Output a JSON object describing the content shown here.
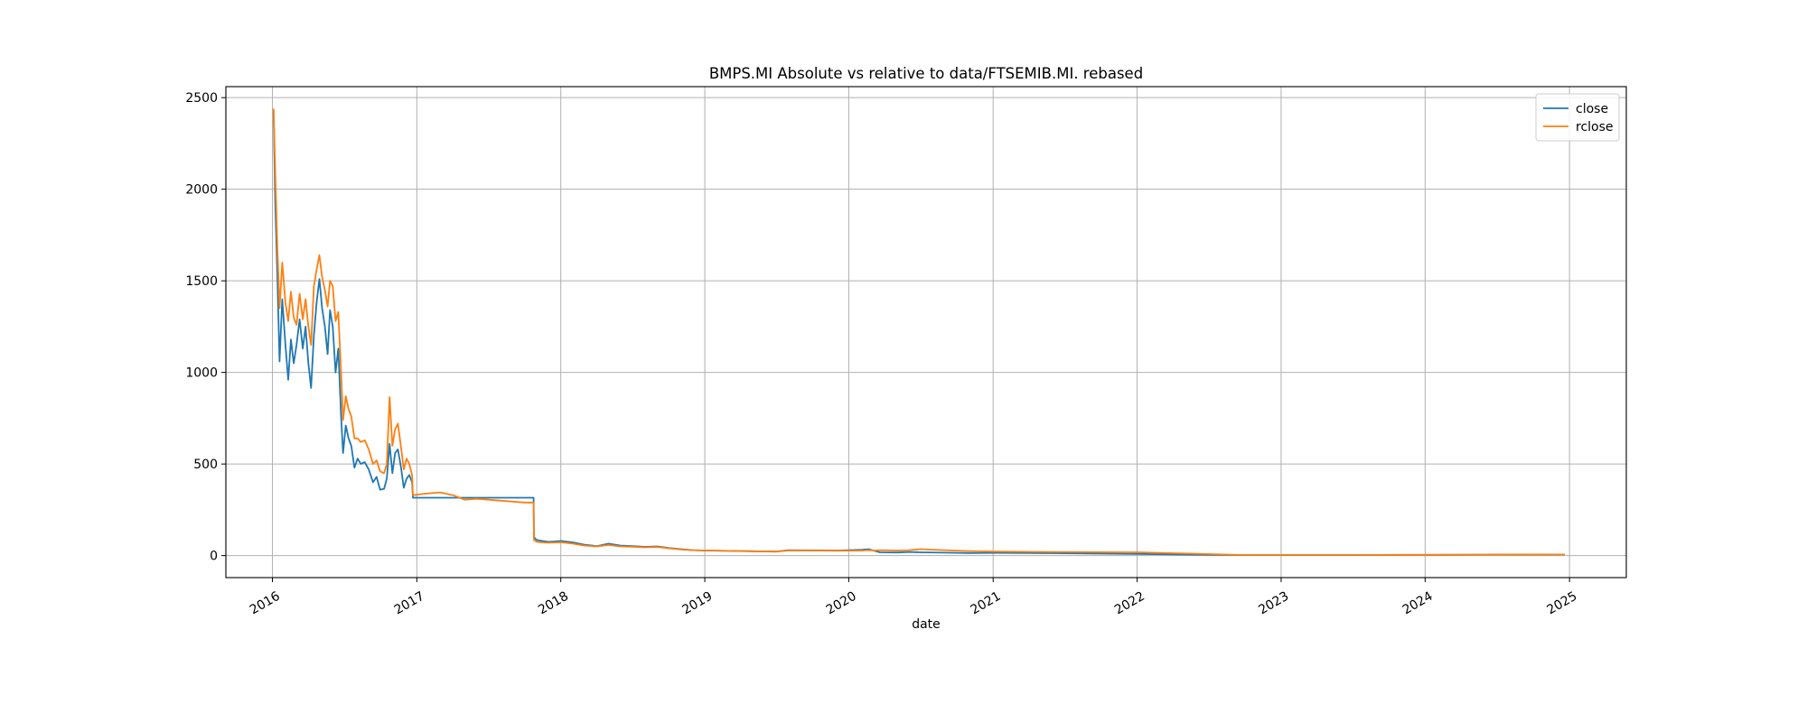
{
  "chart_data": {
    "type": "line",
    "title": "BMPS.MI Absolute vs relative to data/FTSEMIB.MI. rebased",
    "xlabel": "date",
    "ylabel": "",
    "x_type": "date",
    "xlim": [
      "2015-09-05",
      "2025-05-25"
    ],
    "ylim": [
      -120,
      2560
    ],
    "x_ticks": [
      {
        "date": "2016-01-01",
        "label": "2016"
      },
      {
        "date": "2017-01-01",
        "label": "2017"
      },
      {
        "date": "2018-01-01",
        "label": "2018"
      },
      {
        "date": "2019-01-01",
        "label": "2019"
      },
      {
        "date": "2020-01-01",
        "label": "2020"
      },
      {
        "date": "2021-01-01",
        "label": "2021"
      },
      {
        "date": "2022-01-01",
        "label": "2022"
      },
      {
        "date": "2023-01-01",
        "label": "2023"
      },
      {
        "date": "2024-01-01",
        "label": "2024"
      },
      {
        "date": "2025-01-01",
        "label": "2025"
      }
    ],
    "y_ticks": [
      0,
      500,
      1000,
      1500,
      2000,
      2500
    ],
    "grid": true,
    "legend_position": "top-right",
    "series": [
      {
        "name": "close",
        "color": "#1f77b4",
        "points": [
          [
            "2016-01-04",
            2430
          ],
          [
            "2016-01-08",
            1930
          ],
          [
            "2016-01-13",
            1560
          ],
          [
            "2016-01-19",
            1060
          ],
          [
            "2016-01-26",
            1400
          ],
          [
            "2016-02-03",
            1150
          ],
          [
            "2016-02-10",
            960
          ],
          [
            "2016-02-17",
            1180
          ],
          [
            "2016-02-24",
            1050
          ],
          [
            "2016-03-02",
            1150
          ],
          [
            "2016-03-10",
            1290
          ],
          [
            "2016-03-18",
            1130
          ],
          [
            "2016-03-25",
            1250
          ],
          [
            "2016-04-01",
            1050
          ],
          [
            "2016-04-08",
            915
          ],
          [
            "2016-04-15",
            1200
          ],
          [
            "2016-04-22",
            1380
          ],
          [
            "2016-04-29",
            1510
          ],
          [
            "2016-05-06",
            1350
          ],
          [
            "2016-05-13",
            1250
          ],
          [
            "2016-05-20",
            1100
          ],
          [
            "2016-05-26",
            1340
          ],
          [
            "2016-06-02",
            1250
          ],
          [
            "2016-06-09",
            1000
          ],
          [
            "2016-06-16",
            1130
          ],
          [
            "2016-06-23",
            760
          ],
          [
            "2016-06-28",
            560
          ],
          [
            "2016-07-05",
            710
          ],
          [
            "2016-07-12",
            640
          ],
          [
            "2016-07-19",
            600
          ],
          [
            "2016-07-27",
            480
          ],
          [
            "2016-08-04",
            530
          ],
          [
            "2016-08-12",
            500
          ],
          [
            "2016-08-22",
            510
          ],
          [
            "2016-09-01",
            470
          ],
          [
            "2016-09-12",
            400
          ],
          [
            "2016-09-21",
            430
          ],
          [
            "2016-09-30",
            360
          ],
          [
            "2016-10-10",
            365
          ],
          [
            "2016-10-17",
            420
          ],
          [
            "2016-10-24",
            610
          ],
          [
            "2016-10-31",
            450
          ],
          [
            "2016-11-07",
            560
          ],
          [
            "2016-11-14",
            580
          ],
          [
            "2016-11-22",
            480
          ],
          [
            "2016-11-29",
            370
          ],
          [
            "2016-12-06",
            420
          ],
          [
            "2016-12-13",
            440
          ],
          [
            "2016-12-20",
            400
          ],
          [
            "2016-12-22",
            316
          ],
          [
            "2017-10-24",
            316
          ],
          [
            "2017-10-25",
            100
          ],
          [
            "2017-11-01",
            85
          ],
          [
            "2017-11-15",
            80
          ],
          [
            "2017-12-01",
            75
          ],
          [
            "2018-01-02",
            80
          ],
          [
            "2018-02-01",
            72
          ],
          [
            "2018-03-01",
            60
          ],
          [
            "2018-04-03",
            52
          ],
          [
            "2018-05-02",
            65
          ],
          [
            "2018-06-01",
            55
          ],
          [
            "2018-07-02",
            52
          ],
          [
            "2018-08-01",
            48
          ],
          [
            "2018-09-03",
            50
          ],
          [
            "2018-10-01",
            42
          ],
          [
            "2018-11-02",
            35
          ],
          [
            "2018-12-03",
            30
          ],
          [
            "2019-01-03",
            28
          ],
          [
            "2019-03-01",
            26
          ],
          [
            "2019-05-02",
            24
          ],
          [
            "2019-07-01",
            22
          ],
          [
            "2019-08-01",
            30
          ],
          [
            "2019-10-01",
            29
          ],
          [
            "2019-12-02",
            28
          ],
          [
            "2020-02-03",
            32
          ],
          [
            "2020-02-20",
            35
          ],
          [
            "2020-03-09",
            25
          ],
          [
            "2020-03-20",
            18
          ],
          [
            "2020-05-04",
            17
          ],
          [
            "2020-06-02",
            20
          ],
          [
            "2020-07-01",
            18
          ],
          [
            "2020-09-01",
            16
          ],
          [
            "2020-11-02",
            14
          ],
          [
            "2021-01-04",
            15
          ],
          [
            "2021-06-01",
            13
          ],
          [
            "2022-01-03",
            9
          ],
          [
            "2022-06-01",
            5
          ],
          [
            "2022-10-03",
            3
          ],
          [
            "2023-01-03",
            3
          ],
          [
            "2023-06-01",
            3
          ],
          [
            "2024-01-02",
            4
          ],
          [
            "2024-06-03",
            5
          ],
          [
            "2024-12-20",
            6
          ]
        ]
      },
      {
        "name": "rclose",
        "color": "#ff7f0e",
        "points": [
          [
            "2016-01-04",
            2440
          ],
          [
            "2016-01-08",
            2100
          ],
          [
            "2016-01-13",
            1710
          ],
          [
            "2016-01-19",
            1350
          ],
          [
            "2016-01-26",
            1600
          ],
          [
            "2016-02-03",
            1380
          ],
          [
            "2016-02-10",
            1280
          ],
          [
            "2016-02-17",
            1440
          ],
          [
            "2016-02-24",
            1300
          ],
          [
            "2016-03-02",
            1260
          ],
          [
            "2016-03-10",
            1430
          ],
          [
            "2016-03-18",
            1290
          ],
          [
            "2016-03-25",
            1400
          ],
          [
            "2016-04-01",
            1250
          ],
          [
            "2016-04-08",
            1150
          ],
          [
            "2016-04-15",
            1470
          ],
          [
            "2016-04-22",
            1560
          ],
          [
            "2016-04-29",
            1640
          ],
          [
            "2016-05-06",
            1520
          ],
          [
            "2016-05-13",
            1450
          ],
          [
            "2016-05-20",
            1360
          ],
          [
            "2016-05-26",
            1500
          ],
          [
            "2016-06-02",
            1470
          ],
          [
            "2016-06-09",
            1280
          ],
          [
            "2016-06-16",
            1330
          ],
          [
            "2016-06-23",
            1000
          ],
          [
            "2016-06-28",
            740
          ],
          [
            "2016-07-05",
            870
          ],
          [
            "2016-07-12",
            800
          ],
          [
            "2016-07-19",
            760
          ],
          [
            "2016-07-27",
            640
          ],
          [
            "2016-08-04",
            640
          ],
          [
            "2016-08-12",
            620
          ],
          [
            "2016-08-22",
            630
          ],
          [
            "2016-09-01",
            580
          ],
          [
            "2016-09-12",
            500
          ],
          [
            "2016-09-21",
            520
          ],
          [
            "2016-09-30",
            460
          ],
          [
            "2016-10-10",
            450
          ],
          [
            "2016-10-17",
            500
          ],
          [
            "2016-10-24",
            865
          ],
          [
            "2016-10-31",
            600
          ],
          [
            "2016-11-07",
            690
          ],
          [
            "2016-11-14",
            720
          ],
          [
            "2016-11-22",
            590
          ],
          [
            "2016-11-29",
            470
          ],
          [
            "2016-12-06",
            530
          ],
          [
            "2016-12-13",
            500
          ],
          [
            "2016-12-20",
            440
          ],
          [
            "2016-12-22",
            330
          ],
          [
            "2017-01-10",
            335
          ],
          [
            "2017-02-01",
            340
          ],
          [
            "2017-03-01",
            345
          ],
          [
            "2017-04-03",
            330
          ],
          [
            "2017-05-02",
            305
          ],
          [
            "2017-06-01",
            310
          ],
          [
            "2017-07-03",
            305
          ],
          [
            "2017-08-01",
            300
          ],
          [
            "2017-09-01",
            295
          ],
          [
            "2017-10-02",
            290
          ],
          [
            "2017-10-24",
            290
          ],
          [
            "2017-10-25",
            85
          ],
          [
            "2017-11-01",
            75
          ],
          [
            "2017-11-15",
            72
          ],
          [
            "2017-12-01",
            70
          ],
          [
            "2018-01-02",
            73
          ],
          [
            "2018-02-01",
            65
          ],
          [
            "2018-03-01",
            55
          ],
          [
            "2018-04-03",
            50
          ],
          [
            "2018-05-02",
            58
          ],
          [
            "2018-06-01",
            50
          ],
          [
            "2018-07-02",
            48
          ],
          [
            "2018-08-01",
            45
          ],
          [
            "2018-09-03",
            47
          ],
          [
            "2018-10-01",
            40
          ],
          [
            "2018-11-02",
            33
          ],
          [
            "2018-12-03",
            30
          ],
          [
            "2019-01-03",
            28
          ],
          [
            "2019-03-01",
            26
          ],
          [
            "2019-05-02",
            24
          ],
          [
            "2019-07-01",
            22
          ],
          [
            "2019-08-01",
            28
          ],
          [
            "2019-10-01",
            28
          ],
          [
            "2019-12-02",
            27
          ],
          [
            "2020-02-03",
            28
          ],
          [
            "2020-02-20",
            30
          ],
          [
            "2020-03-09",
            28
          ],
          [
            "2020-03-20",
            30
          ],
          [
            "2020-05-04",
            28
          ],
          [
            "2020-06-02",
            30
          ],
          [
            "2020-07-01",
            35
          ],
          [
            "2020-09-01",
            30
          ],
          [
            "2020-11-02",
            25
          ],
          [
            "2021-01-04",
            22
          ],
          [
            "2021-06-01",
            20
          ],
          [
            "2022-01-03",
            18
          ],
          [
            "2022-06-01",
            10
          ],
          [
            "2022-10-03",
            3
          ],
          [
            "2023-01-03",
            3
          ],
          [
            "2023-06-01",
            3
          ],
          [
            "2024-01-02",
            4
          ],
          [
            "2024-06-03",
            5
          ],
          [
            "2024-12-20",
            6
          ]
        ]
      }
    ]
  }
}
